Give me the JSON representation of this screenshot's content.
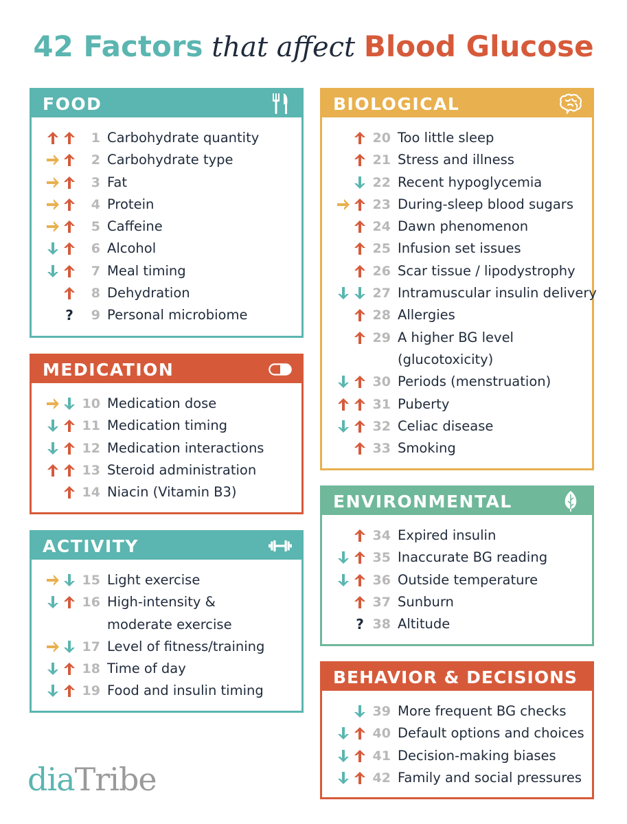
{
  "title": {
    "part1": "42 Factors",
    "part2": " that affect ",
    "part3": "Blood Glucose"
  },
  "logo": {
    "part1": "dia",
    "part2": "Tribe"
  },
  "colors": {
    "teal": "#5bb5b0",
    "orange": "#d65a3a",
    "yellow": "#e8b04e",
    "green": "#6fb89a",
    "navy": "#1f2a3a"
  },
  "sections": [
    {
      "id": "food",
      "title": "FOOD",
      "icon": "fork-knife-icon",
      "items": [
        {
          "n": "1",
          "label": "Carbohydrate quantity",
          "arrows": [
            "up",
            "up"
          ]
        },
        {
          "n": "2",
          "label": "Carbohydrate type",
          "arrows": [
            "right",
            "up"
          ]
        },
        {
          "n": "3",
          "label": "Fat",
          "arrows": [
            "right",
            "up"
          ]
        },
        {
          "n": "4",
          "label": "Protein",
          "arrows": [
            "right",
            "up"
          ]
        },
        {
          "n": "5",
          "label": "Caffeine",
          "arrows": [
            "right",
            "up"
          ]
        },
        {
          "n": "6",
          "label": "Alcohol",
          "arrows": [
            "down",
            "up"
          ]
        },
        {
          "n": "7",
          "label": "Meal timing",
          "arrows": [
            "down",
            "up"
          ]
        },
        {
          "n": "8",
          "label": "Dehydration",
          "arrows": [
            "up"
          ]
        },
        {
          "n": "9",
          "label": "Personal microbiome",
          "arrows": [
            "q"
          ]
        }
      ]
    },
    {
      "id": "medication",
      "title": "MEDICATION",
      "icon": "pill-icon",
      "items": [
        {
          "n": "10",
          "label": "Medication dose",
          "arrows": [
            "right",
            "down"
          ]
        },
        {
          "n": "11",
          "label": "Medication timing",
          "arrows": [
            "down",
            "up"
          ]
        },
        {
          "n": "12",
          "label": "Medication interactions",
          "arrows": [
            "down",
            "up"
          ]
        },
        {
          "n": "13",
          "label": "Steroid administration",
          "arrows": [
            "up",
            "up"
          ]
        },
        {
          "n": "14",
          "label": "Niacin (Vitamin B3)",
          "arrows": [
            "up"
          ]
        }
      ]
    },
    {
      "id": "activity",
      "title": "ACTIVITY",
      "icon": "dumbbell-icon",
      "items": [
        {
          "n": "15",
          "label": "Light exercise",
          "arrows": [
            "right",
            "down"
          ]
        },
        {
          "n": "16",
          "label": "High-intensity &",
          "label2": "moderate exercise",
          "arrows": [
            "down",
            "up"
          ]
        },
        {
          "n": "17",
          "label": "Level of fitness/training",
          "arrows": [
            "right",
            "down"
          ]
        },
        {
          "n": "18",
          "label": "Time of day",
          "arrows": [
            "down",
            "up"
          ]
        },
        {
          "n": "19",
          "label": "Food and insulin timing",
          "arrows": [
            "down",
            "up"
          ]
        }
      ]
    },
    {
      "id": "biological",
      "title": "BIOLOGICAL",
      "icon": "brain-icon",
      "items": [
        {
          "n": "20",
          "label": "Too little sleep",
          "arrows": [
            "up"
          ]
        },
        {
          "n": "21",
          "label": "Stress and illness",
          "arrows": [
            "up"
          ]
        },
        {
          "n": "22",
          "label": "Recent hypoglycemia",
          "arrows": [
            "down"
          ]
        },
        {
          "n": "23",
          "label": "During-sleep blood sugars",
          "arrows": [
            "right",
            "up"
          ]
        },
        {
          "n": "24",
          "label": "Dawn phenomenon",
          "arrows": [
            "up"
          ]
        },
        {
          "n": "25",
          "label": "Infusion set issues",
          "arrows": [
            "up"
          ]
        },
        {
          "n": "26",
          "label": "Scar tissue / lipodystrophy",
          "arrows": [
            "up"
          ]
        },
        {
          "n": "27",
          "label": "Intramuscular insulin delivery",
          "arrows": [
            "down",
            "down"
          ]
        },
        {
          "n": "28",
          "label": "Allergies",
          "arrows": [
            "up"
          ]
        },
        {
          "n": "29",
          "label": "A higher BG level",
          "label2": "(glucotoxicity)",
          "arrows": [
            "up"
          ]
        },
        {
          "n": "30",
          "label": "Periods (menstruation)",
          "arrows": [
            "down",
            "up"
          ]
        },
        {
          "n": "31",
          "label": "Puberty",
          "arrows": [
            "up",
            "up"
          ]
        },
        {
          "n": "32",
          "label": "Celiac disease",
          "arrows": [
            "down",
            "up"
          ]
        },
        {
          "n": "33",
          "label": "Smoking",
          "arrows": [
            "up"
          ]
        }
      ]
    },
    {
      "id": "environmental",
      "title": "ENVIRONMENTAL",
      "icon": "leaf-icon",
      "items": [
        {
          "n": "34",
          "label": "Expired insulin",
          "arrows": [
            "up"
          ]
        },
        {
          "n": "35",
          "label": "Inaccurate BG reading",
          "arrows": [
            "down",
            "up"
          ]
        },
        {
          "n": "36",
          "label": "Outside temperature",
          "arrows": [
            "down",
            "up"
          ]
        },
        {
          "n": "37",
          "label": "Sunburn",
          "arrows": [
            "up"
          ]
        },
        {
          "n": "38",
          "label": "Altitude",
          "arrows": [
            "q"
          ]
        }
      ]
    },
    {
      "id": "behavior",
      "title": "BEHAVIOR & DECISIONS",
      "icon": "",
      "items": [
        {
          "n": "39",
          "label": "More frequent BG checks",
          "arrows": [
            "down"
          ]
        },
        {
          "n": "40",
          "label": "Default options and choices",
          "arrows": [
            "down",
            "up"
          ]
        },
        {
          "n": "41",
          "label": "Decision-making biases",
          "arrows": [
            "down",
            "up"
          ]
        },
        {
          "n": "42",
          "label": "Family and social pressures",
          "arrows": [
            "down",
            "up"
          ]
        }
      ]
    }
  ]
}
